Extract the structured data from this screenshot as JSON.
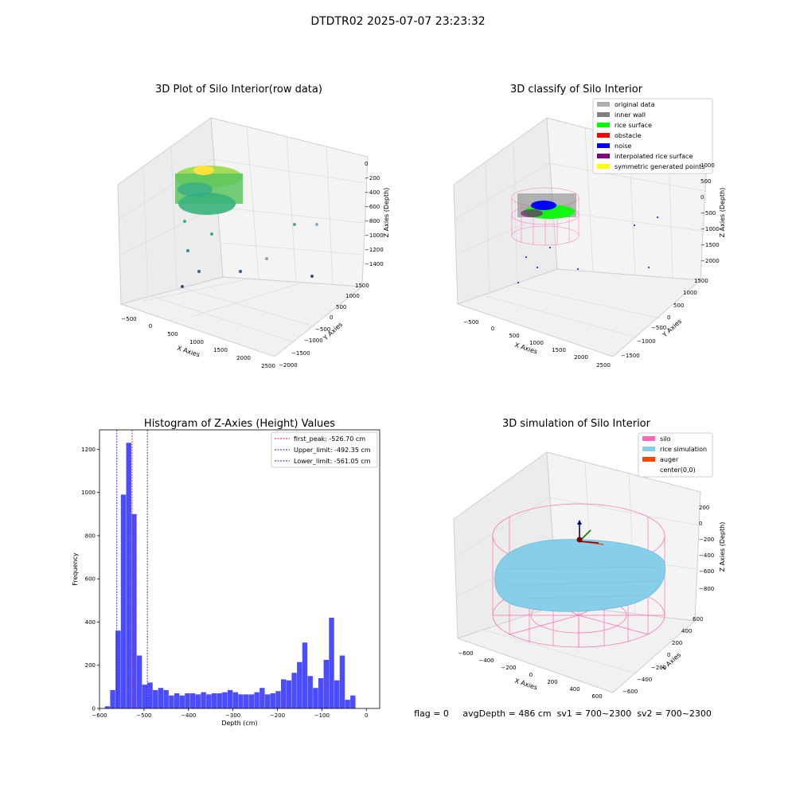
{
  "suptitle": "DTDTR02 2025-07-07 23:23:32",
  "status_line": "flag = 0     avgDepth = 486 cm  sv1 = 700~2300  sv2 = 700~2300",
  "colors": {
    "hist_bar": "#4b4bff",
    "peak_line": "#e41a1c",
    "limit_line": "#2222cc",
    "silo": "#ff69b4",
    "rice": "#87ceeb",
    "inner_wall": "#808080",
    "rice_surface": "#00ff00",
    "noise": "#0000ff",
    "interpolated": "#800080",
    "auger": "#ff4500"
  },
  "chart_data": [
    {
      "type": "scatter",
      "subtype": "3d",
      "title": "3D Plot of Silo Interior(row data)",
      "xlabel": "X Axies",
      "ylabel": "Y Axies",
      "zlabel": "Z Axies (Depth)",
      "x_ticks": [
        "−500",
        "0",
        "500",
        "1000",
        "1500",
        "2000",
        "2500"
      ],
      "y_ticks": [
        "−2000",
        "−1500",
        "−1000",
        "−500",
        "0",
        "500",
        "1000",
        "1500"
      ],
      "z_ticks": [
        "0",
        "−200",
        "−400",
        "−600",
        "−800",
        "−1000",
        "−1200",
        "−1400"
      ],
      "colormap": "viridis",
      "grid": true
    },
    {
      "type": "scatter",
      "subtype": "3d",
      "title": "3D classify of Silo Interior",
      "xlabel": "X Axies",
      "ylabel": "Y Axies",
      "zlabel": "Z Axies (Depth)",
      "x_ticks": [
        "−500",
        "0",
        "500",
        "1000",
        "1500",
        "2000",
        "2500"
      ],
      "y_ticks": [
        "−1500",
        "−1000",
        "−500",
        "0",
        "500",
        "1000",
        "1500"
      ],
      "z_ticks": [
        "1000",
        "500",
        "0",
        "−500",
        "−1000",
        "−1500",
        "−2000"
      ],
      "legend_position": "top-right",
      "legend": [
        {
          "label": "original data",
          "color": "#b0b0b0"
        },
        {
          "label": "inner wall",
          "color": "#808080"
        },
        {
          "label": "rice surface",
          "color": "#00ff00"
        },
        {
          "label": "obstacle",
          "color": "#ff0000"
        },
        {
          "label": "noise",
          "color": "#0000ff"
        },
        {
          "label": "interpolated rice surface",
          "color": "#800080"
        },
        {
          "label": "symmetric generated points",
          "color": "#ffff00"
        }
      ],
      "grid": true
    },
    {
      "type": "bar",
      "subtype": "histogram",
      "title": "Histogram of Z-Axies (Height) Values",
      "xlabel": "Depth (cm)",
      "ylabel": "Frequency",
      "xlim": [
        -600,
        30
      ],
      "ylim": [
        0,
        1290
      ],
      "x_ticks": [
        -600,
        -500,
        -400,
        -300,
        -200,
        -100,
        0
      ],
      "y_ticks": [
        0,
        200,
        400,
        600,
        800,
        1000,
        1200
      ],
      "bin_width": 12,
      "bin_start": -600,
      "values": [
        0,
        10,
        85,
        360,
        990,
        1230,
        900,
        245,
        110,
        120,
        85,
        95,
        85,
        60,
        70,
        60,
        70,
        70,
        65,
        75,
        65,
        70,
        70,
        75,
        85,
        75,
        65,
        65,
        65,
        75,
        95,
        65,
        70,
        80,
        135,
        130,
        165,
        215,
        305,
        150,
        95,
        140,
        225,
        420,
        130,
        245,
        40,
        60
      ],
      "vlines": [
        {
          "label": "first_peak: -526.70 cm",
          "x": -526.7,
          "color": "#e41a1c"
        },
        {
          "label": "Upper_limit: -492.35 cm",
          "x": -492.35,
          "color": "#2222cc"
        },
        {
          "label": "Lower_limit: -561.05 cm",
          "x": -561.05,
          "color": "#2222cc"
        }
      ],
      "legend_position": "top-right",
      "grid": false
    },
    {
      "type": "scatter",
      "subtype": "3d-surface",
      "title": "3D simulation of Silo Interior",
      "xlabel": "X Axies",
      "ylabel": "Y Axies",
      "zlabel": "Z Axies (Depth)",
      "x_ticks": [
        "−600",
        "−400",
        "−200",
        "0",
        "200",
        "400",
        "600"
      ],
      "y_ticks": [
        "−600",
        "−400",
        "−200",
        "0",
        "200",
        "400",
        "600"
      ],
      "z_ticks": [
        "200",
        "0",
        "−200",
        "−400",
        "−600",
        "−800"
      ],
      "legend_position": "top-right",
      "legend": [
        {
          "label": "silo",
          "color": "#ff69b4"
        },
        {
          "label": "rice simulation",
          "color": "#87ceeb"
        },
        {
          "label": "auger",
          "color": "#ff4500"
        },
        {
          "label": "center(0,0)",
          "color": ""
        }
      ],
      "grid": true
    }
  ]
}
